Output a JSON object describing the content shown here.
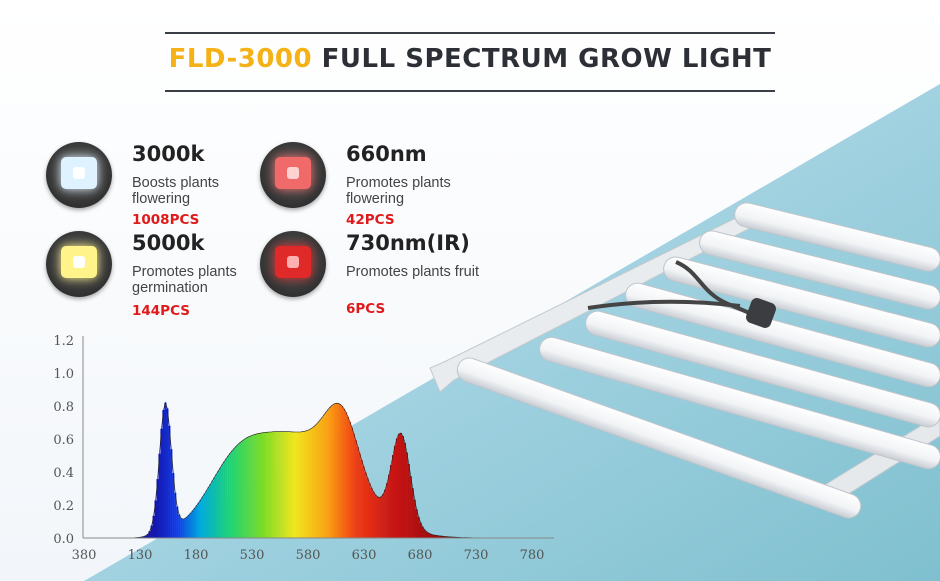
{
  "title": {
    "model": "FLD-3000",
    "rest": "FULL SPECTRUM GROW LIGHT"
  },
  "specs": [
    {
      "name": "3000k",
      "desc": "Boosts plants flowering",
      "pcs": "1008PCS",
      "chip": "#dff2ff",
      "dot": "#ffffff"
    },
    {
      "name": "660nm",
      "desc": "Promotes plants flowering",
      "pcs": "42PCS",
      "chip": "#f06a6a",
      "dot": "#ffd2d2"
    },
    {
      "name": "5000k",
      "desc": "Promotes plants germination",
      "pcs": "144PCS",
      "chip": "#fff38a",
      "dot": "#ffffff"
    },
    {
      "name": "730nm(IR)",
      "desc": "Promotes plants fruit",
      "pcs": "6PCS",
      "chip": "#e02a2a",
      "dot": "#ffb0b0"
    }
  ],
  "spectrum": {
    "y_ticks": [
      "1.2",
      "1.0",
      "0.8",
      "0.6",
      "0.4",
      "0.2",
      "0.0"
    ],
    "x_ticks": [
      "380",
      "130",
      "180",
      "530",
      "580",
      "630",
      "680",
      "730",
      "780"
    ]
  },
  "colors": {
    "accent": "#f4b217",
    "pcs_red": "#e01a1a",
    "title_dark": "#2c2f36"
  }
}
